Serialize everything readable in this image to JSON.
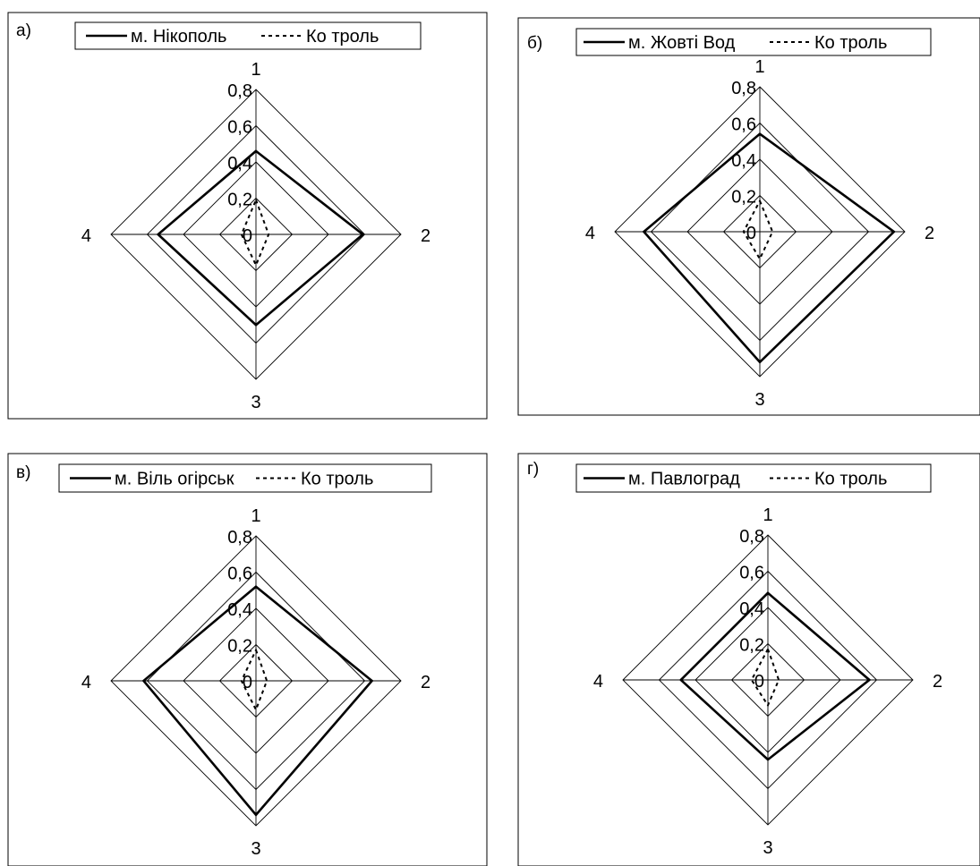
{
  "chart_data": [
    {
      "type": "radar",
      "panel_label": "а)",
      "categories": [
        "1",
        "2",
        "3",
        "4"
      ],
      "ticks": [
        "0",
        "0,2",
        "0,4",
        "0,6",
        "0,8"
      ],
      "rmax": 0.8,
      "legend": [
        "м. Нікополь",
        "Ко троль"
      ],
      "series": [
        {
          "name": "м. Нікополь",
          "style": "solid",
          "values": [
            0.46,
            0.59,
            0.5,
            0.54
          ]
        },
        {
          "name": "Ко троль",
          "style": "dashed",
          "values": [
            0.19,
            0.07,
            0.17,
            0.08
          ]
        }
      ]
    },
    {
      "type": "radar",
      "panel_label": "б)",
      "categories": [
        "1",
        "2",
        "3",
        "4"
      ],
      "ticks": [
        "0",
        "0,2",
        "0,4",
        "0,6",
        "0,8"
      ],
      "rmax": 0.8,
      "legend": [
        "м. Жовті Вод",
        "Ко троль"
      ],
      "series": [
        {
          "name": "м. Жовті Вод",
          "style": "solid",
          "values": [
            0.54,
            0.74,
            0.72,
            0.64
          ]
        },
        {
          "name": "Ко троль",
          "style": "dashed",
          "values": [
            0.17,
            0.07,
            0.15,
            0.09
          ]
        }
      ]
    },
    {
      "type": "radar",
      "panel_label": "в)",
      "categories": [
        "1",
        "2",
        "3",
        "4"
      ],
      "ticks": [
        "0",
        "0,2",
        "0,4",
        "0,6",
        "0,8"
      ],
      "rmax": 0.8,
      "legend": [
        "м. Віль огірськ",
        "Ко троль"
      ],
      "series": [
        {
          "name": "м. Віль огірськ",
          "style": "solid",
          "values": [
            0.52,
            0.64,
            0.74,
            0.62
          ]
        },
        {
          "name": "Ко троль",
          "style": "dashed",
          "values": [
            0.17,
            0.06,
            0.16,
            0.08
          ]
        }
      ]
    },
    {
      "type": "radar",
      "panel_label": "г)",
      "categories": [
        "1",
        "2",
        "3",
        "4"
      ],
      "ticks": [
        "0",
        "0,2",
        "0,4",
        "0,6",
        "0,8"
      ],
      "rmax": 0.8,
      "legend": [
        "м. Павлоград",
        "Ко троль"
      ],
      "series": [
        {
          "name": "м. Павлоград",
          "style": "solid",
          "values": [
            0.48,
            0.56,
            0.44,
            0.48
          ]
        },
        {
          "name": "Ко троль",
          "style": "dashed",
          "values": [
            0.17,
            0.06,
            0.14,
            0.09
          ]
        }
      ]
    }
  ]
}
